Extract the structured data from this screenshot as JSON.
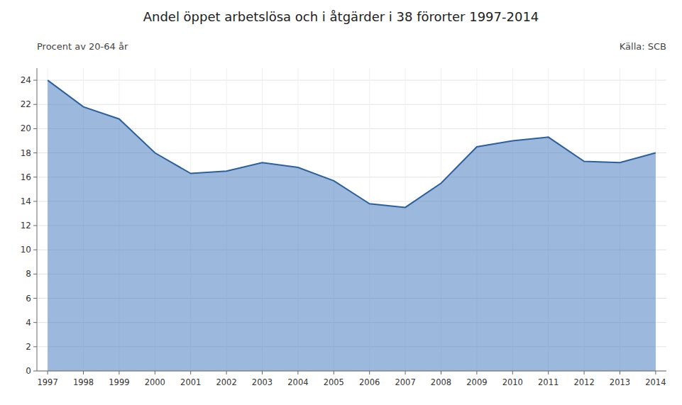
{
  "chart_data": {
    "type": "area",
    "title": "Andel öppet arbetslösa och i åtgärder i 38 förorter 1997-2014",
    "subtitle": "Procent av 20-64 år",
    "source": "Källa: SCB",
    "x": [
      1997,
      1998,
      1999,
      2000,
      2001,
      2002,
      2003,
      2004,
      2005,
      2006,
      2007,
      2008,
      2009,
      2010,
      2011,
      2012,
      2013,
      2014
    ],
    "values": [
      24.0,
      21.8,
      20.8,
      18.0,
      16.3,
      16.5,
      17.2,
      16.8,
      15.7,
      13.8,
      13.5,
      15.5,
      18.5,
      19.0,
      19.3,
      17.3,
      17.2,
      18.0
    ],
    "xlim": [
      1996.7,
      2014.3
    ],
    "xticks": [
      1997,
      1998,
      1999,
      2000,
      2001,
      2002,
      2003,
      2004,
      2005,
      2006,
      2007,
      2008,
      2009,
      2010,
      2011,
      2012,
      2013,
      2014
    ],
    "ylim": [
      0,
      25
    ],
    "yticks": [
      0,
      2,
      4,
      6,
      8,
      10,
      12,
      14,
      16,
      18,
      20,
      22,
      24
    ],
    "grid": true
  }
}
